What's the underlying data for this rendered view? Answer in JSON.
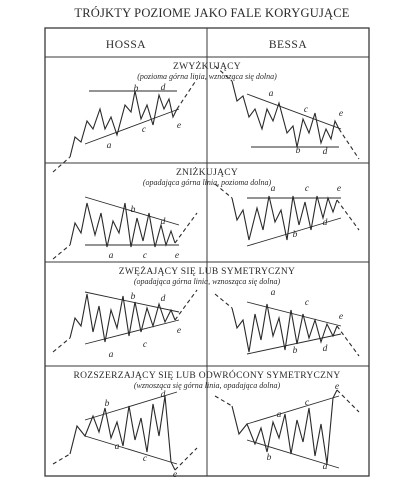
{
  "title": "TRÓJKTY POZIOME JAKO FALE KORYGUJĄCE",
  "columns": [
    "HOSSA",
    "BESSA"
  ],
  "sections": [
    {
      "heading": "ZWYŻKUJĄCY",
      "subheading": "(pozioma górna linia, wznosząca się dolna)",
      "hossa_labels": [
        "a",
        "b",
        "c",
        "d",
        "e"
      ],
      "bessa_labels": [
        "a",
        "b",
        "c",
        "d",
        "e"
      ]
    },
    {
      "heading": "ZNIŻKUJĄCY",
      "subheading": "(opadająca górna linia, pozioma dolna)",
      "hossa_labels": [
        "a",
        "b",
        "c",
        "d",
        "e"
      ],
      "bessa_labels": [
        "a",
        "b",
        "c",
        "d",
        "e"
      ]
    },
    {
      "heading": "ZWĘŻAJĄCY SIĘ LUB SYMETRYCZNY",
      "subheading": "(opadająca górna linia, wznosząca się dolna)",
      "hossa_labels": [
        "a",
        "b",
        "c",
        "d",
        "e"
      ],
      "bessa_labels": [
        "a",
        "b",
        "c",
        "d",
        "e"
      ]
    },
    {
      "heading": "ROZSZERZAJĄCY SIĘ LUB ODWRÓCONY SYMETRYCZNY",
      "subheading": "(wznosząca się górna linia, opadająca dolna)",
      "hossa_labels": [
        "a",
        "b",
        "c",
        "d",
        "e"
      ],
      "bessa_labels": [
        "a",
        "b",
        "c",
        "d",
        "e"
      ]
    }
  ],
  "colors": {
    "ink": "#2a2a2a",
    "background": "#ffffff"
  }
}
